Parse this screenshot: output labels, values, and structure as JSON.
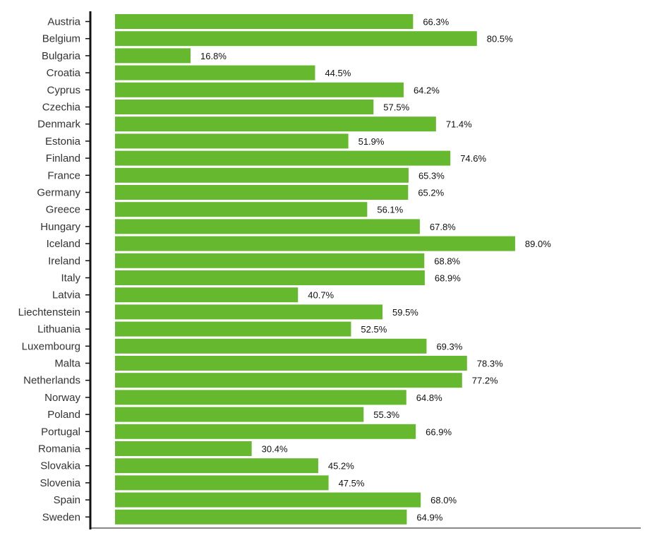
{
  "chart_data": {
    "type": "bar",
    "orientation": "horizontal",
    "categories": [
      "Austria",
      "Belgium",
      "Bulgaria",
      "Croatia",
      "Cyprus",
      "Czechia",
      "Denmark",
      "Estonia",
      "Finland",
      "France",
      "Germany",
      "Greece",
      "Hungary",
      "Iceland",
      "Ireland",
      "Italy",
      "Latvia",
      "Liechtenstein",
      "Lithuania",
      "Luxembourg",
      "Malta",
      "Netherlands",
      "Norway",
      "Poland",
      "Portugal",
      "Romania",
      "Slovakia",
      "Slovenia",
      "Spain",
      "Sweden"
    ],
    "values": [
      66.3,
      80.5,
      16.8,
      44.5,
      64.2,
      57.5,
      71.4,
      51.9,
      74.6,
      65.3,
      65.2,
      56.1,
      67.8,
      89.0,
      68.8,
      68.9,
      40.7,
      59.5,
      52.5,
      69.3,
      78.3,
      77.2,
      64.8,
      55.3,
      66.9,
      30.4,
      45.2,
      47.5,
      68.0,
      64.9
    ],
    "value_labels": [
      "66.3%",
      "80.5%",
      "16.8%",
      "44.5%",
      "64.2%",
      "57.5%",
      "71.4%",
      "51.9%",
      "74.6%",
      "65.3%",
      "65.2%",
      "56.1%",
      "67.8%",
      "89.0%",
      "68.8%",
      "68.9%",
      "40.7%",
      "59.5%",
      "52.5%",
      "69.3%",
      "78.3%",
      "77.2%",
      "64.8%",
      "55.3%",
      "66.9%",
      "30.4%",
      "45.2%",
      "47.5%",
      "68.0%",
      "64.9%"
    ],
    "unit": "%",
    "title": "",
    "xlabel": "",
    "ylabel": "",
    "xlim": [
      0,
      100
    ],
    "bar_color": "#66b82e",
    "grid": false,
    "legend": "none"
  }
}
